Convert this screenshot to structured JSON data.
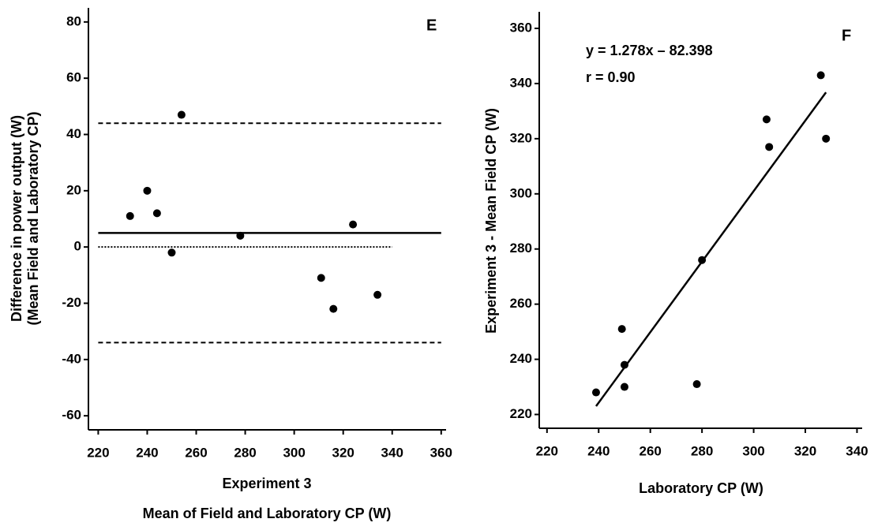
{
  "chart_data": [
    {
      "type": "scatter",
      "panel_label": "E",
      "x_label": [
        "Experiment 3",
        "Mean of Field and Laboratory CP (W)"
      ],
      "y_label": [
        "Difference in power output (W)",
        "(Mean Field and Laboratory CP)"
      ],
      "xlim": [
        216,
        362
      ],
      "ylim": [
        -65,
        85
      ],
      "xticks": [
        220,
        240,
        260,
        280,
        300,
        320,
        340,
        360
      ],
      "yticks": [
        -60,
        -40,
        -20,
        0,
        20,
        40,
        60,
        80
      ],
      "series": [
        {
          "color": "#000000",
          "x": [
            233,
            240,
            244,
            250,
            254,
            278,
            311,
            316,
            324,
            334
          ],
          "values": [
            11,
            20,
            12,
            -2,
            47,
            4,
            -11,
            -22,
            8,
            -17
          ]
        }
      ],
      "reference_lines": [
        {
          "y": 44,
          "x": [
            220,
            360
          ],
          "style": "dashed"
        },
        {
          "y": 5,
          "x": [
            220,
            360
          ],
          "style": "solid"
        },
        {
          "y": -34,
          "x": [
            220,
            360
          ],
          "style": "dashed"
        },
        {
          "y": 0,
          "x": [
            220,
            340
          ],
          "style": "dotted"
        }
      ]
    },
    {
      "type": "scatter",
      "panel_label": "F",
      "annotations": [
        "y = 1.278x – 82.398",
        "r = 0.90"
      ],
      "x_label": [
        "Laboratory CP (W)"
      ],
      "y_label": [
        "Experiment 3 - Mean Field CP (W)"
      ],
      "xlim": [
        217,
        342
      ],
      "ylim": [
        215,
        366
      ],
      "xticks": [
        220,
        240,
        260,
        280,
        300,
        320,
        340
      ],
      "yticks": [
        220,
        240,
        260,
        280,
        300,
        320,
        340,
        360
      ],
      "series": [
        {
          "color": "#000000",
          "x": [
            239,
            249,
            250,
            250,
            278,
            280,
            305,
            306,
            326,
            328
          ],
          "values": [
            228,
            251,
            238,
            230,
            231,
            276,
            327,
            317,
            343,
            320
          ]
        }
      ],
      "fit_line": {
        "x": [
          239,
          328
        ],
        "values": [
          223,
          336.8
        ]
      }
    }
  ]
}
